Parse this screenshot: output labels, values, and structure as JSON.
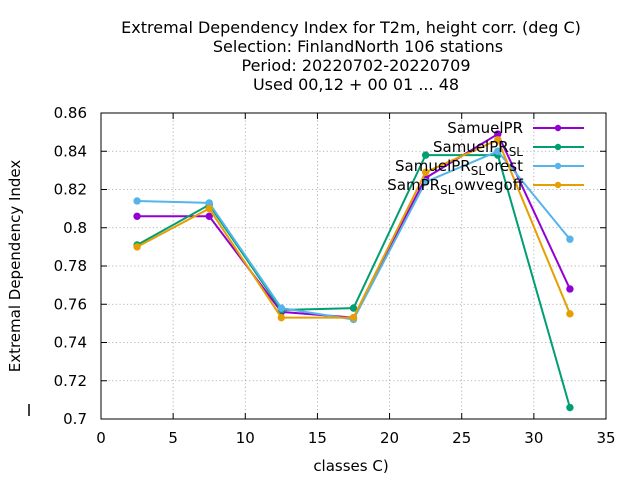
{
  "chart_data": {
    "type": "line",
    "title": [
      "Extremal Dependency Index  for T2m, height corr. (deg C)",
      "Selection: FinlandNorth    106 stations",
      "Period: 20220702-20220709",
      "Used  00,12  + 00 01 ... 48"
    ],
    "xlabel": "classes C)",
    "ylabel": "Extremal Dependency Index",
    "xlim": [
      0,
      35
    ],
    "ylim": [
      0.7,
      0.86
    ],
    "xticks": [
      0,
      5,
      10,
      15,
      20,
      25,
      30,
      35
    ],
    "yticks": [
      0.7,
      0.72,
      0.74,
      0.76,
      0.78,
      0.8,
      0.82,
      0.84,
      0.86
    ],
    "ytick_labels": [
      "0.7",
      "0.72",
      "0.74",
      "0.76",
      "0.78",
      "0.8",
      "0.82",
      "0.84",
      "0.86"
    ],
    "grid": true,
    "legend_position": "top-right",
    "x": [
      2.5,
      7.5,
      12.5,
      17.5,
      22.5,
      27.5,
      32.5
    ],
    "series": [
      {
        "name": "SamuelPR",
        "color": "#9400d3",
        "values": [
          0.806,
          0.806,
          0.756,
          0.753,
          0.826,
          0.849,
          0.768
        ]
      },
      {
        "name": "SamuelPR_SL",
        "color": "#009e73",
        "values": [
          0.791,
          0.812,
          0.757,
          0.758,
          0.838,
          0.838,
          0.706
        ]
      },
      {
        "name": "SamuelPR_SL_forest",
        "color": "#56b4e9",
        "values": [
          0.814,
          0.813,
          0.758,
          0.752,
          0.824,
          0.84,
          0.794
        ]
      },
      {
        "name": "SamPR_SL_lowvegoff",
        "color": "#e69f00",
        "values": [
          0.79,
          0.81,
          0.753,
          0.753,
          0.829,
          0.846,
          0.755
        ]
      }
    ]
  }
}
